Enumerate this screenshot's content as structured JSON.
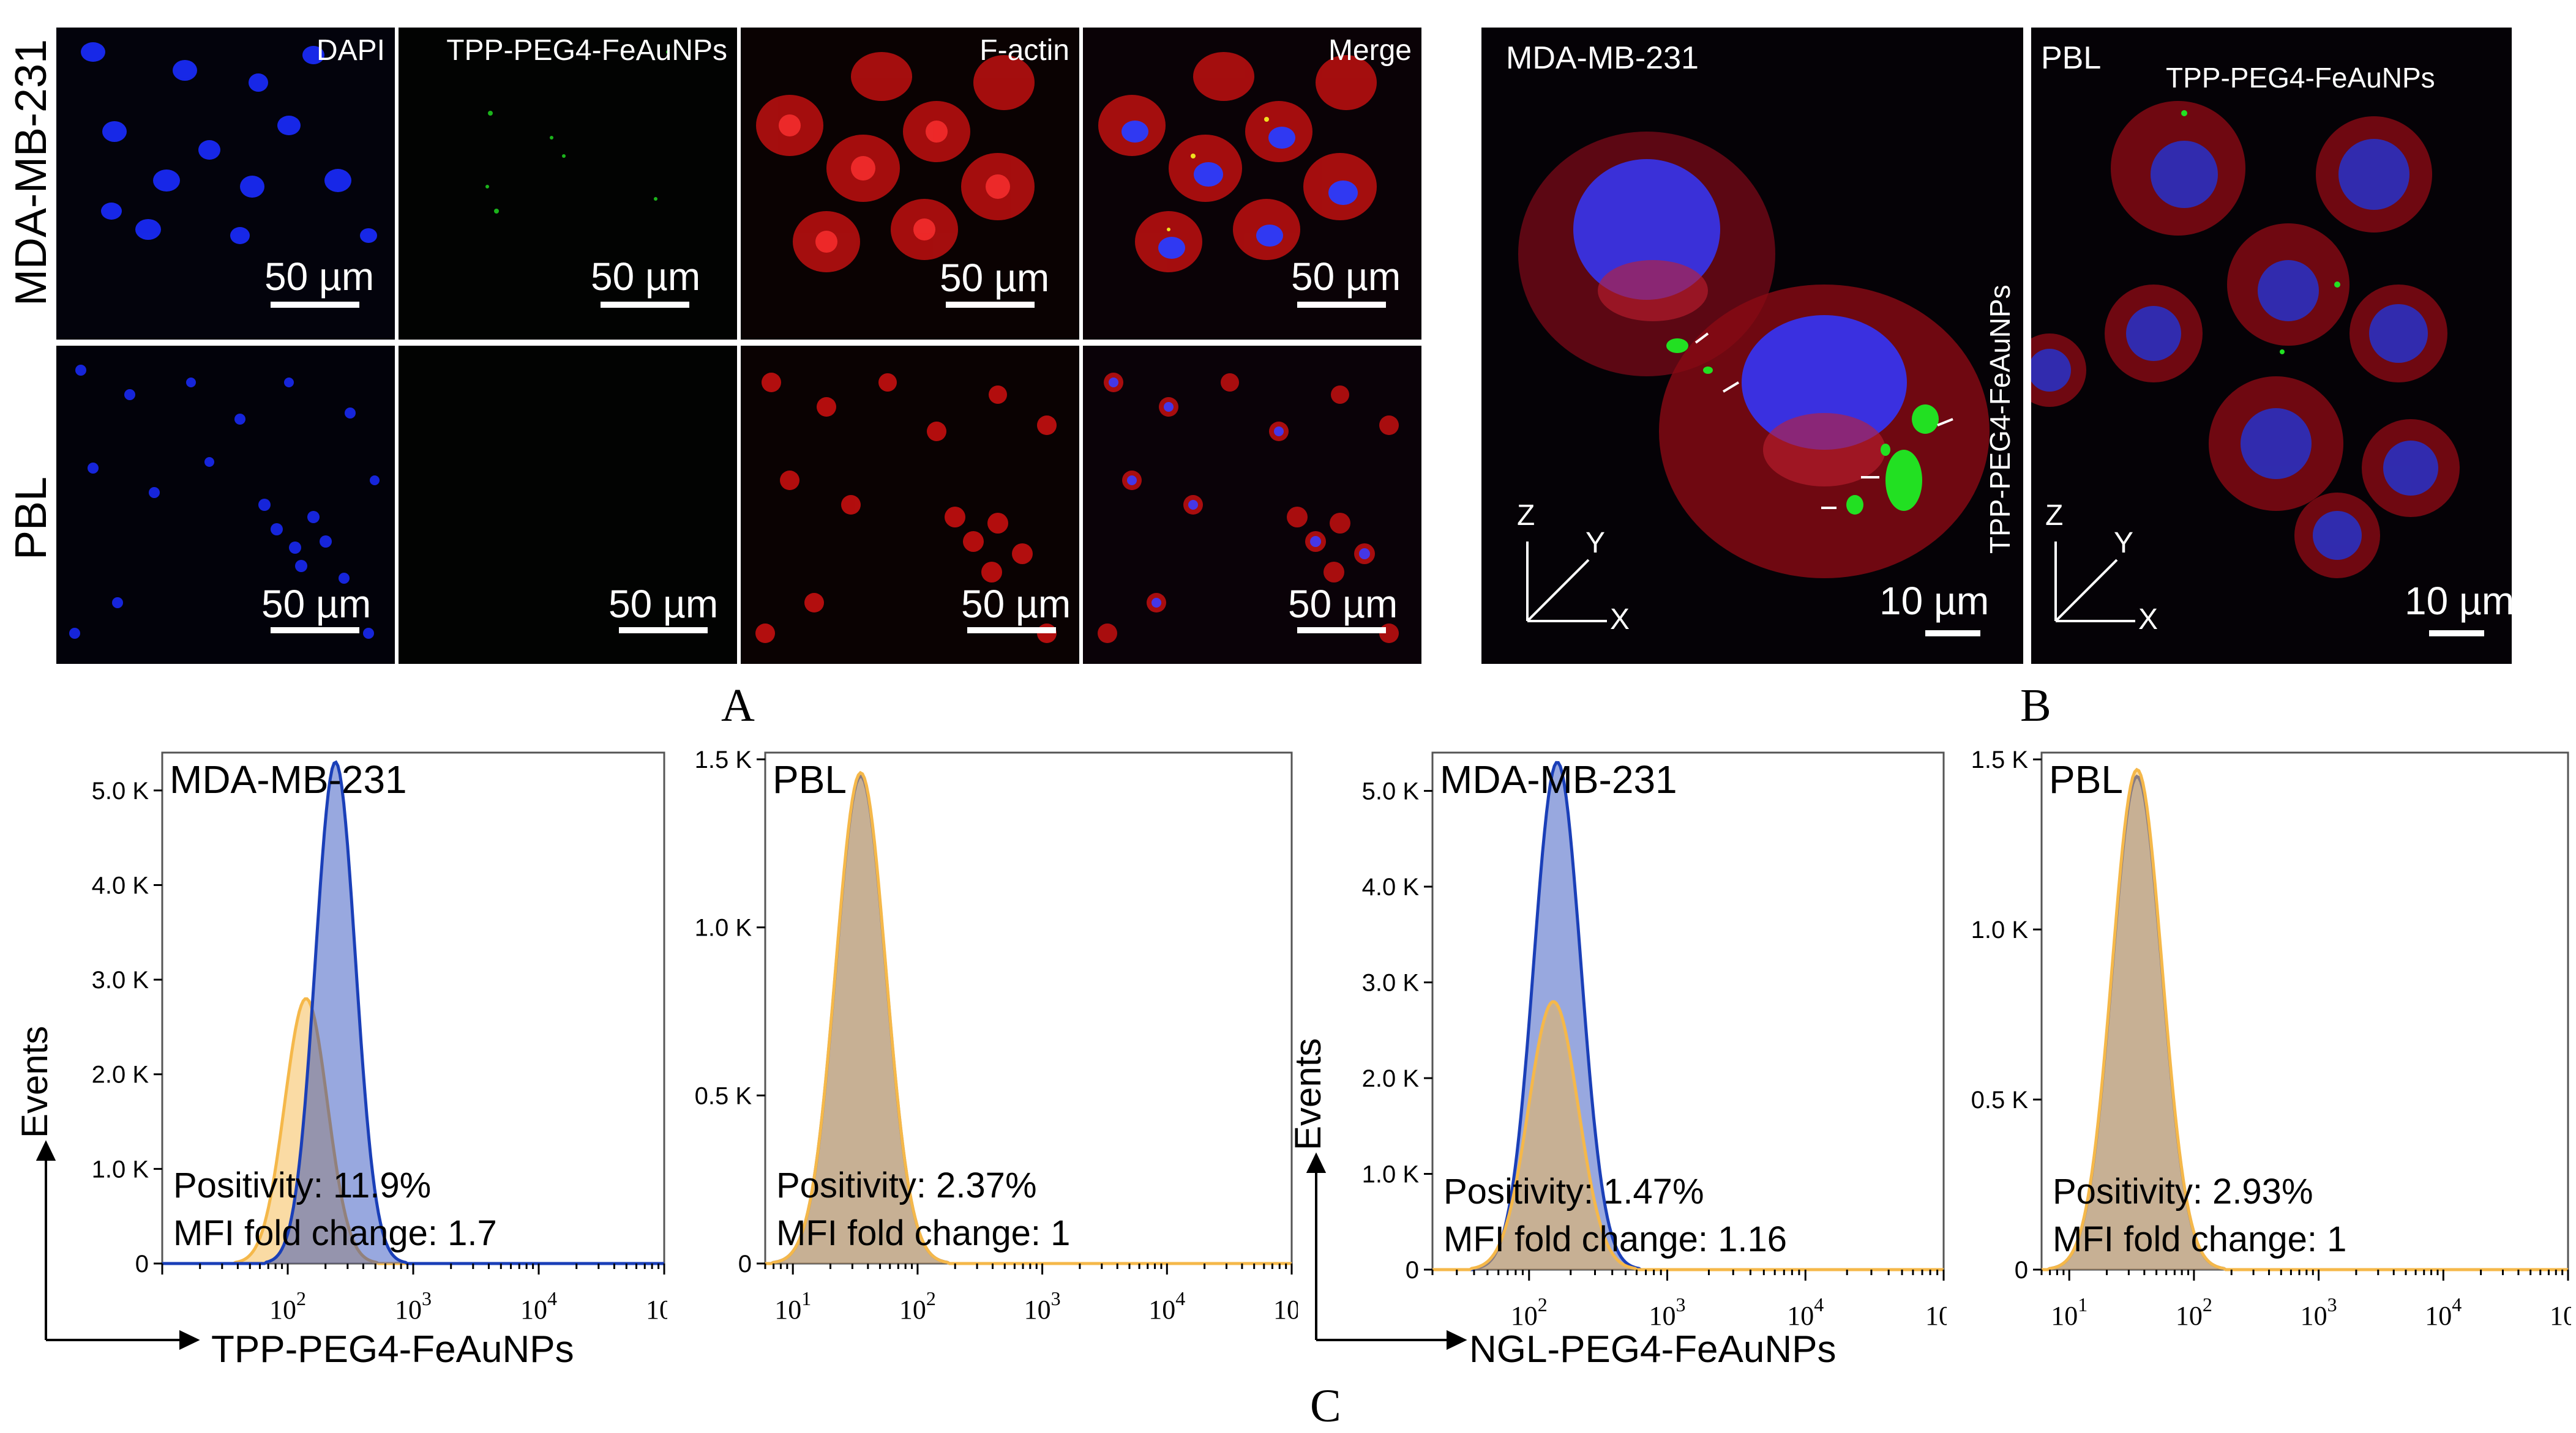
{
  "panel_labels": {
    "a": "A",
    "b": "B",
    "c": "C"
  },
  "panelA": {
    "columns": [
      "DAPI",
      "TPP-PEG4-FeAuNPs",
      "F-actin",
      "Merge"
    ],
    "rows": [
      "MDA-MB-231",
      "PBL"
    ],
    "scale_bar": "50 µm"
  },
  "panelB": {
    "left": {
      "cell": "MDA-MB-231",
      "np_label": "TPP-PEG4-FeAuNPs",
      "scale_bar": "10 µm"
    },
    "right": {
      "cell": "PBL",
      "np_label": "TPP-PEG4-FeAuNPs",
      "scale_bar": "10 µm"
    },
    "axes": {
      "z": "Z",
      "y": "Y",
      "x": "X"
    }
  },
  "colors": {
    "dapi": "#1a2cff",
    "actin": "#e01010",
    "np": "#22e022",
    "control": "#f5b84a",
    "treated": "#1a3fb8"
  },
  "panelC": {
    "groups": [
      {
        "xlabel": "TPP-PEG4-FeAuNPs",
        "ylabel": "Events"
      },
      {
        "xlabel": "NGL-PEG4-FeAuNPs",
        "ylabel": "Events"
      }
    ]
  },
  "chart_data": [
    {
      "type": "area",
      "title": "MDA-MB-231",
      "x_scale": "log",
      "xlim": [
        10,
        100000
      ],
      "ylim": [
        0,
        5400
      ],
      "yticks": [
        {
          "v": 0,
          "t": "0"
        },
        {
          "v": 1000,
          "t": "1.0 K"
        },
        {
          "v": 2000,
          "t": "2.0 K"
        },
        {
          "v": 3000,
          "t": "3.0 K"
        },
        {
          "v": 4000,
          "t": "4.0 K"
        },
        {
          "v": 5000,
          "t": "5.0 K"
        }
      ],
      "xticks_show": [
        2,
        3,
        4,
        5
      ],
      "series": [
        {
          "peak_x": 140,
          "sigma": 0.17,
          "peak_y": 2800,
          "role": "control"
        },
        {
          "peak_x": 240,
          "sigma": 0.16,
          "peak_y": 5300,
          "role": "treated"
        }
      ],
      "annotations": [
        "Positivity: 11.9%",
        "MFI fold change: 1.7"
      ]
    },
    {
      "type": "area",
      "title": "PBL",
      "x_scale": "log",
      "xlim": [
        6,
        100000
      ],
      "ylim": [
        0,
        1520
      ],
      "yticks": [
        {
          "v": 0,
          "t": "0"
        },
        {
          "v": 500,
          "t": "0.5 K"
        },
        {
          "v": 1000,
          "t": "1.0 K"
        },
        {
          "v": 1500,
          "t": "1.5 K"
        }
      ],
      "xticks_show": [
        1,
        2,
        3,
        4,
        5
      ],
      "series": [
        {
          "peak_x": 35,
          "sigma": 0.2,
          "peak_y": 1450,
          "role": "treated"
        },
        {
          "peak_x": 35,
          "sigma": 0.2,
          "peak_y": 1460,
          "role": "control"
        }
      ],
      "annotations": [
        "Positivity: 2.37%",
        "MFI fold change: 1"
      ]
    },
    {
      "type": "area",
      "title": "MDA-MB-231",
      "x_scale": "log",
      "xlim": [
        20,
        100000
      ],
      "ylim": [
        0,
        5400
      ],
      "yticks": [
        {
          "v": 0,
          "t": "0"
        },
        {
          "v": 1000,
          "t": "1.0 K"
        },
        {
          "v": 2000,
          "t": "2.0 K"
        },
        {
          "v": 3000,
          "t": "3.0 K"
        },
        {
          "v": 4000,
          "t": "4.0 K"
        },
        {
          "v": 5000,
          "t": "5.0 K"
        }
      ],
      "xticks_show": [
        2,
        3,
        4,
        5
      ],
      "series": [
        {
          "peak_x": 160,
          "sigma": 0.17,
          "peak_y": 5300,
          "role": "treated"
        },
        {
          "peak_x": 150,
          "sigma": 0.18,
          "peak_y": 2800,
          "role": "control"
        }
      ],
      "annotations": [
        "Positivity: 1.47%",
        "MFI fold change: 1.16"
      ]
    },
    {
      "type": "area",
      "title": "PBL",
      "x_scale": "log",
      "xlim": [
        6,
        100000
      ],
      "ylim": [
        0,
        1520
      ],
      "yticks": [
        {
          "v": 0,
          "t": "0"
        },
        {
          "v": 500,
          "t": "0.5 K"
        },
        {
          "v": 1000,
          "t": "1.0 K"
        },
        {
          "v": 1500,
          "t": "1.5 K"
        }
      ],
      "xticks_show": [
        1,
        2,
        3,
        4,
        5
      ],
      "series": [
        {
          "peak_x": 35,
          "sigma": 0.2,
          "peak_y": 1450,
          "role": "treated"
        },
        {
          "peak_x": 35,
          "sigma": 0.2,
          "peak_y": 1470,
          "role": "control"
        }
      ],
      "annotations": [
        "Positivity: 2.93%",
        "MFI fold change: 1"
      ]
    }
  ]
}
